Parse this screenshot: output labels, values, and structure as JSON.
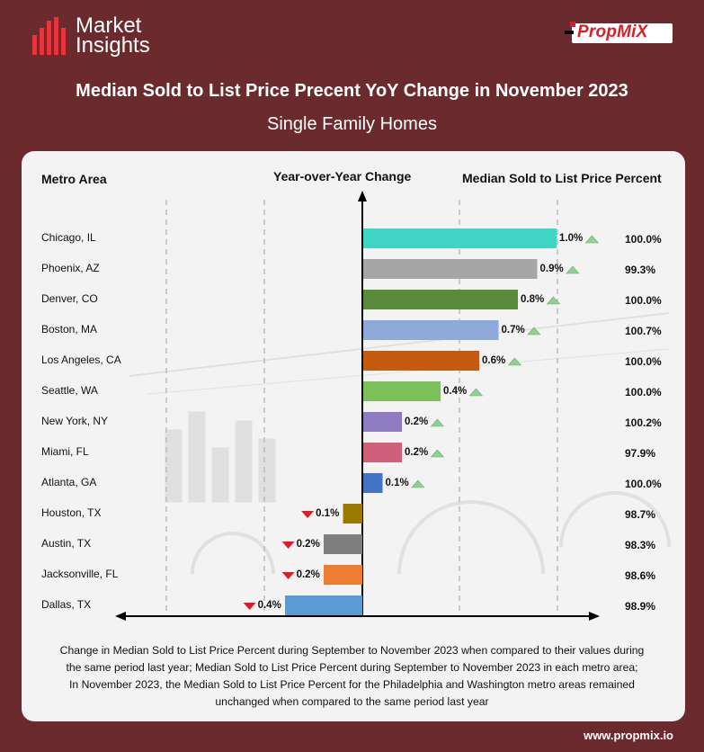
{
  "header": {
    "logo_text_line1": "Market",
    "logo_text_line2": "Insights",
    "brand": "PropMiX",
    "title": "Median Sold to List Price Precent YoY Change in November 2023",
    "subtitle": "Single Family Homes"
  },
  "columns": {
    "metro": "Metro Area",
    "yoy": "Year-over-Year Change",
    "median": "Median Sold to List Price Percent"
  },
  "chart_data": {
    "type": "bar",
    "orientation": "horizontal",
    "categories": [
      "Chicago, IL",
      "Phoenix, AZ",
      "Denver, CO",
      "Boston, MA",
      "Los Angeles, CA",
      "Seattle, WA",
      "New York, NY",
      "Miami, FL",
      "Atlanta, GA",
      "Houston, TX",
      "Austin, TX",
      "Jacksonville, FL",
      "Dallas, TX"
    ],
    "values": [
      1.0,
      0.9,
      0.8,
      0.7,
      0.6,
      0.4,
      0.2,
      0.2,
      0.1,
      -0.1,
      -0.2,
      -0.2,
      -0.4
    ],
    "value_labels": [
      "1.0%",
      "0.9%",
      "0.8%",
      "0.7%",
      "0.6%",
      "0.4%",
      "0.2%",
      "0.2%",
      "0.1%",
      "0.1%",
      "0.2%",
      "0.2%",
      "0.4%"
    ],
    "colors": [
      "#40d6c6",
      "#a6a6a6",
      "#5a8a3c",
      "#8eaadb",
      "#c55a11",
      "#7cc05a",
      "#8e7cc3",
      "#d06079",
      "#4472c4",
      "#9c7a00",
      "#7f7f7f",
      "#ed7d31",
      "#5b9bd5"
    ],
    "median_percent": [
      "100.0%",
      "99.3%",
      "100.0%",
      "100.7%",
      "100.0%",
      "100.0%",
      "100.2%",
      "97.9%",
      "100.0%",
      "98.7%",
      "98.3%",
      "98.6%",
      "98.9%"
    ],
    "up_color": "#8fd18f",
    "down_color": "#d71f2a",
    "xlim": [
      -0.6,
      1.2
    ]
  },
  "footnote": {
    "line1": "Change in Median Sold to List Price Percent during September to November 2023 when compared to their values during",
    "line2": "the same period last year; Median Sold to List Price Percent during September to November 2023 in each metro area;",
    "line3": "In November 2023, the Median Sold to List Price Percent for the Philadelphia and Washington metro areas remained",
    "line4": "unchanged when compared to the same period last year"
  },
  "url": "www.propmix.io"
}
